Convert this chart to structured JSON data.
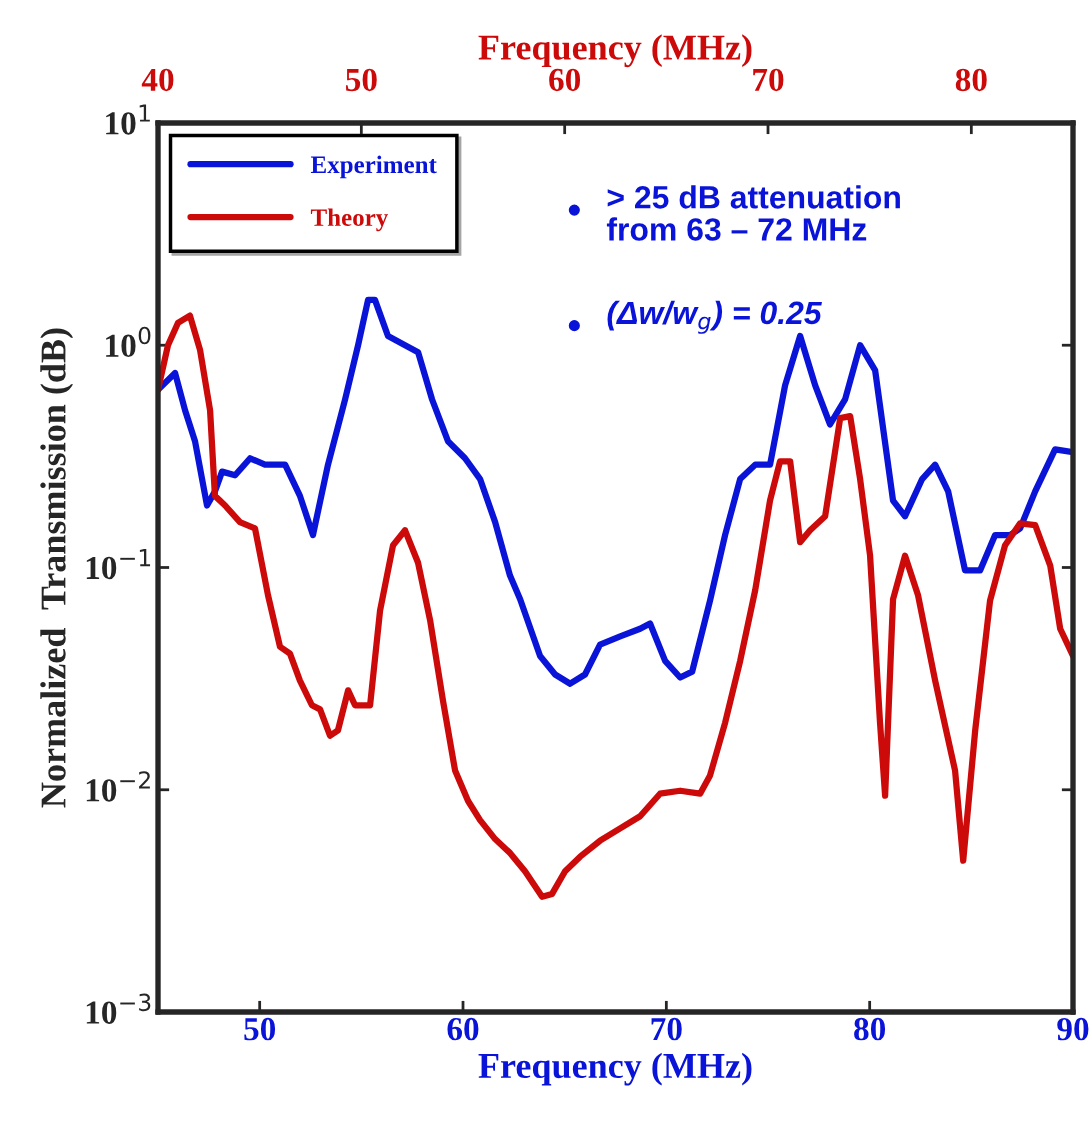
{
  "chart_data": {
    "type": "line",
    "xlabel": "Frequency (MHz)",
    "ylabel": "Normalized  Transmission (dB)",
    "x2label": "Frequency (MHz)",
    "log": "y",
    "xlim": [
      45,
      90
    ],
    "xticks": [
      50,
      60,
      70,
      80,
      90
    ],
    "x2lim": [
      40,
      85
    ],
    "x2ticks": [
      40,
      50,
      60,
      70,
      80
    ],
    "ylim": [
      0.001,
      10
    ],
    "yticks": [
      {
        "value": 0.001,
        "label": "10$^{−3}$"
      },
      {
        "value": 0.01,
        "label": "10$^{−2}$"
      },
      {
        "value": 0.1,
        "label": "10$^{−1}$"
      },
      {
        "value": 1,
        "label": "10$^{0}$"
      },
      {
        "value": 10,
        "label": "10$^{1}$"
      }
    ],
    "grid": false,
    "legend": "top left",
    "marker": "none",
    "line_style": "solid",
    "annotations": [
      "> 25 dB attenuation\nfrom 63 – 72 MHz",
      "(Δw/w$_{g}$) = 0.25"
    ],
    "series": [
      {
        "name": "Experiment",
        "color": "#0a14d8",
        "x": [
          45.0,
          45.84,
          46.33,
          46.82,
          47.41,
          47.8,
          48.15,
          48.79,
          49.53,
          50.26,
          51.25,
          51.98,
          52.62,
          53.36,
          54.2,
          54.84,
          55.33,
          55.67,
          56.31,
          57.15,
          57.79,
          58.48,
          59.26,
          60.1,
          60.84,
          61.58,
          62.31,
          62.81,
          63.79,
          64.53,
          65.27,
          66.0,
          66.74,
          67.73,
          68.71,
          69.2,
          69.94,
          70.68,
          71.27,
          72.15,
          72.89,
          73.63,
          74.37,
          75.1,
          75.84,
          76.58,
          77.32,
          78.05,
          78.79,
          79.53,
          80.27,
          81.15,
          81.74,
          82.58,
          83.22,
          83.86,
          84.69,
          85.43,
          86.17,
          86.91,
          87.4,
          88.14,
          89.12,
          90.0
        ],
        "values": [
          0.63,
          0.75,
          0.51,
          0.37,
          0.19,
          0.22,
          0.27,
          0.26,
          0.31,
          0.29,
          0.29,
          0.21,
          0.14,
          0.29,
          0.57,
          1.0,
          1.6,
          1.6,
          1.1,
          1.0,
          0.93,
          0.57,
          0.37,
          0.31,
          0.25,
          0.16,
          0.092,
          0.072,
          0.04,
          0.033,
          0.03,
          0.033,
          0.045,
          0.049,
          0.053,
          0.056,
          0.038,
          0.032,
          0.034,
          0.071,
          0.14,
          0.25,
          0.29,
          0.29,
          0.66,
          1.1,
          0.66,
          0.44,
          0.57,
          1.0,
          0.77,
          0.2,
          0.17,
          0.25,
          0.29,
          0.22,
          0.097,
          0.097,
          0.14,
          0.14,
          0.15,
          0.22,
          0.34,
          0.33
        ]
      },
      {
        "name": "Theory",
        "color": "#cc0a0a",
        "x": [
          45.0,
          45.49,
          45.98,
          46.57,
          47.07,
          47.56,
          47.8,
          48.3,
          49.03,
          49.77,
          50.41,
          51.0,
          51.49,
          51.98,
          52.57,
          52.97,
          53.46,
          53.85,
          54.35,
          54.69,
          55.43,
          55.92,
          56.56,
          57.15,
          57.79,
          58.38,
          59.02,
          59.61,
          60.25,
          60.84,
          61.58,
          62.31,
          63.05,
          63.89,
          64.38,
          65.02,
          65.76,
          66.74,
          67.73,
          68.71,
          69.69,
          70.68,
          71.66,
          72.15,
          72.89,
          73.63,
          74.37,
          75.1,
          75.59,
          76.09,
          76.58,
          77.07,
          77.81,
          78.55,
          79.04,
          79.53,
          80.02,
          80.51,
          80.76,
          81.15,
          81.74,
          82.38,
          83.22,
          84.2,
          84.6,
          85.19,
          85.92,
          86.66,
          87.4,
          88.14,
          88.88,
          89.37,
          90.0
        ],
        "values": [
          0.63,
          1.0,
          1.26,
          1.36,
          0.95,
          0.51,
          0.21,
          0.19,
          0.16,
          0.15,
          0.075,
          0.044,
          0.041,
          0.031,
          0.024,
          0.023,
          0.0175,
          0.0185,
          0.028,
          0.024,
          0.024,
          0.064,
          0.126,
          0.147,
          0.105,
          0.058,
          0.025,
          0.0122,
          0.0089,
          0.0073,
          0.006,
          0.0052,
          0.0043,
          0.0033,
          0.0034,
          0.0043,
          0.005,
          0.0059,
          0.0067,
          0.0076,
          0.0096,
          0.0099,
          0.0096,
          0.0116,
          0.02,
          0.038,
          0.079,
          0.2,
          0.3,
          0.3,
          0.13,
          0.147,
          0.17,
          0.47,
          0.48,
          0.25,
          0.113,
          0.02,
          0.0094,
          0.072,
          0.113,
          0.075,
          0.031,
          0.0122,
          0.0048,
          0.0185,
          0.071,
          0.126,
          0.158,
          0.155,
          0.102,
          0.053,
          0.04
        ]
      }
    ]
  }
}
